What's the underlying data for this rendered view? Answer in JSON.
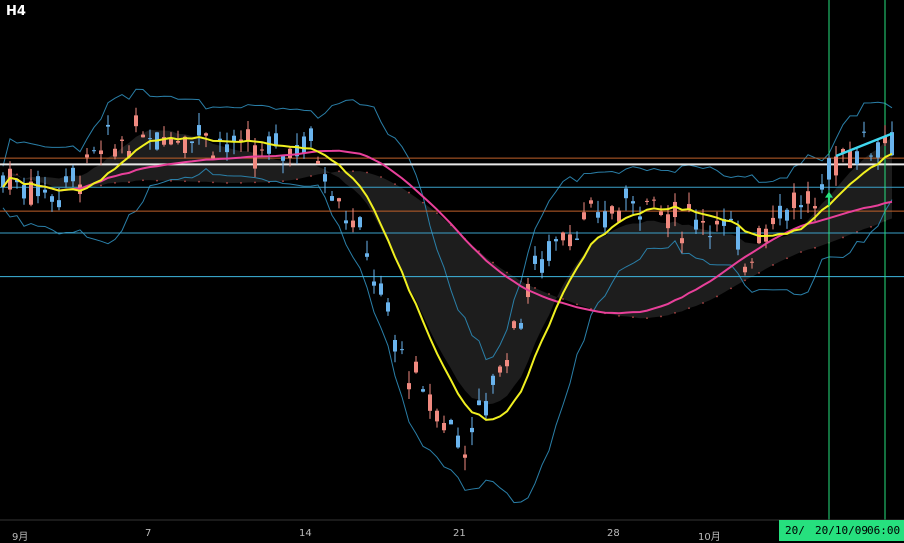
{
  "timeframe": "H4",
  "chart_data": {
    "type": "candlestick",
    "x_tick_labels": [
      "9月",
      "7",
      "14",
      "21",
      "28",
      "10月"
    ],
    "cursor_label": {
      "left": "20/",
      "date": "20/10/09",
      "time": "06:00"
    },
    "y_scale": [
      0,
      100
    ],
    "horizontal_levels": [
      {
        "value": 68.4,
        "color": "#e8e8e8",
        "name": "support-resistance"
      },
      {
        "value": 69.6,
        "color": "#c0602a",
        "name": "orange-level"
      },
      {
        "value": 59.4,
        "color": "#c0602a",
        "name": "orange-level"
      },
      {
        "value": 64.0,
        "color": "#3aa0c8",
        "name": "blue-level"
      },
      {
        "value": 55.2,
        "color": "#3aa0c8",
        "name": "blue-level"
      },
      {
        "value": 46.8,
        "color": "#3fb8e0",
        "name": "blue-level"
      }
    ],
    "vertical_markers": [
      {
        "index": 118,
        "color": "#26e07e"
      },
      {
        "index": 126,
        "color": "#26e07e"
      }
    ],
    "colors": {
      "up": "#f08a80",
      "down": "#6ab4ee",
      "sma": "#f0f020",
      "long_ma": "#e8409a",
      "band": "#2a7fa8",
      "cloud": "#222222",
      "cloud_dots": "#b04848"
    },
    "sma": {
      "color": "#f0f020"
    },
    "long_ma": {
      "color": "#e8409a"
    },
    "bands": {
      "color": "#2a7fa8"
    },
    "cloud": {
      "color": "#222222"
    },
    "cyan_trend": {
      "from_index": 119,
      "from_value": 70.0,
      "to_index": 127,
      "to_value": 74.3
    },
    "up_arrow_index": 118
  }
}
